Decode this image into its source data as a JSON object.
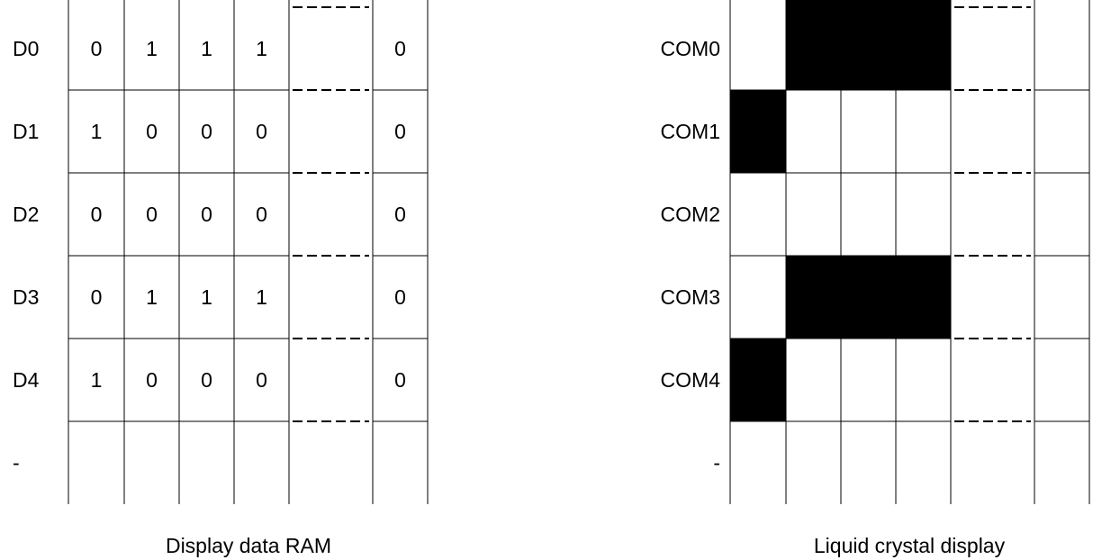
{
  "ram_panel": {
    "caption": "Display data RAM",
    "row_labels": [
      "D0",
      "D1",
      "D2",
      "D3",
      "D4",
      "-"
    ],
    "rows": [
      [
        "0",
        "1",
        "1",
        "1",
        "",
        "0"
      ],
      [
        "1",
        "0",
        "0",
        "0",
        "",
        "0"
      ],
      [
        "0",
        "0",
        "0",
        "0",
        "",
        "0"
      ],
      [
        "0",
        "1",
        "1",
        "1",
        "",
        "0"
      ],
      [
        "1",
        "0",
        "0",
        "0",
        "",
        "0"
      ],
      [
        "",
        "",
        "",
        "",
        "",
        ""
      ]
    ]
  },
  "lcd_panel": {
    "caption": "Liquid crystal display",
    "row_labels": [
      "COM0",
      "COM1",
      "COM2",
      "COM3",
      "COM4",
      "-"
    ],
    "pixels": [
      [
        0,
        1,
        1,
        1,
        0,
        0
      ],
      [
        1,
        0,
        0,
        0,
        0,
        0
      ],
      [
        0,
        0,
        0,
        0,
        0,
        0
      ],
      [
        0,
        1,
        1,
        1,
        0,
        0
      ],
      [
        1,
        0,
        0,
        0,
        0,
        0
      ],
      [
        0,
        0,
        0,
        0,
        0,
        0
      ]
    ],
    "on_color": "#000000",
    "off_color": "#ffffff"
  }
}
